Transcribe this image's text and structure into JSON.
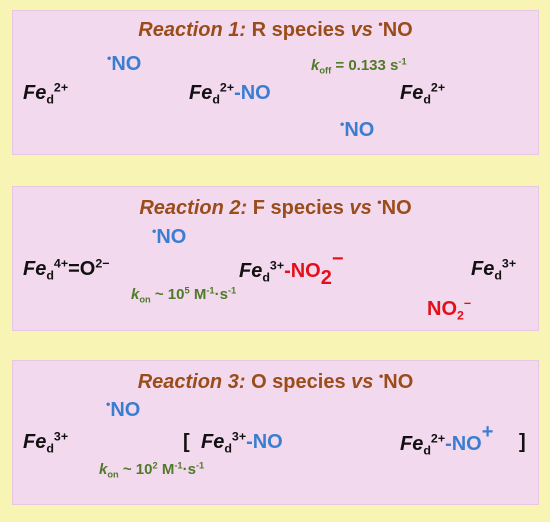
{
  "reaction1": {
    "title_name": "Reaction 1:",
    "title_species": "R species",
    "title_vs": "vs",
    "title_radical": "•",
    "title_no": "NO",
    "reactant_fe": "Fe",
    "reactant_sub": "d",
    "reactant_sup": "2+",
    "in_radical": "•",
    "in_no": "NO",
    "product1_fe": "Fe",
    "product1_sub": "d",
    "product1_sup": "2+",
    "product1_ligand": "-NO",
    "koff_k": "k",
    "koff_sub": "off",
    "koff_value": " = 0.133 s",
    "koff_exp": "-1",
    "out_radical": "•",
    "out_no": "NO",
    "product2_fe": "Fe",
    "product2_sub": "d",
    "product2_sup": "2+"
  },
  "reaction2": {
    "title_name": "Reaction 2:",
    "title_species": "F species",
    "title_vs": "vs",
    "title_radical": "•",
    "title_no": "NO",
    "reactant_fe": "Fe",
    "reactant_sub": "d",
    "reactant_sup": "4+",
    "reactant_oxo": "=O",
    "reactant_oxo_sup": "2−",
    "in_radical": "•",
    "in_no": "NO",
    "kon_k": "k",
    "kon_sub": "on",
    "kon_prefix": " ~ 10",
    "kon_exp": "5",
    "kon_unit_m": " M",
    "kon_unit_m_exp": "-1",
    "kon_unit_s": "·s",
    "kon_unit_s_exp": "-1",
    "product1_fe": "Fe",
    "product1_sub": "d",
    "product1_sup": "3+",
    "product1_dash": "-",
    "product1_ligand": "NO",
    "product1_ligand_sub": "2",
    "product1_ligand_sup": "−",
    "out_no": "NO",
    "out_sub": "2",
    "out_sup": "−",
    "product2_fe": "Fe",
    "product2_sub": "d",
    "product2_sup": "3+"
  },
  "reaction3": {
    "title_name": "Reaction 3:",
    "title_species": "O species",
    "title_vs": "vs",
    "title_radical": "•",
    "title_no": "NO",
    "reactant_fe": "Fe",
    "reactant_sub": "d",
    "reactant_sup": "3+",
    "in_radical": "•",
    "in_no": "NO",
    "kon_k": "k",
    "kon_sub": "on",
    "kon_prefix": " ~ 10",
    "kon_exp": "2",
    "kon_unit_m": " M",
    "kon_unit_m_exp": "-1",
    "kon_unit_s": "·s",
    "kon_unit_s_exp": "-1",
    "bracket_open": "[",
    "form1_fe": "Fe",
    "form1_sub": "d",
    "form1_sup": "3+",
    "form1_ligand": "-NO",
    "form2_fe": "Fe",
    "form2_sub": "d",
    "form2_sup": "2+",
    "form2_ligand": "-NO",
    "form2_ligand_sup": "+",
    "bracket_close": "]"
  },
  "colors": {
    "background": "#f8f5b4",
    "panel": "#f3d9ee",
    "title": "#9a4c1a",
    "black": "#111111",
    "blue": "#3b7ed0",
    "red": "#e3101a",
    "green": "#4f7a28"
  }
}
